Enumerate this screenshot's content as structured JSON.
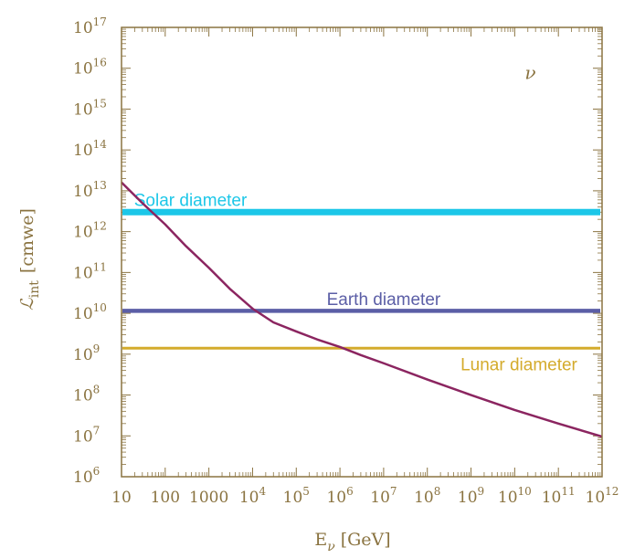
{
  "chart_data": {
    "type": "line",
    "xlabel": "E",
    "xlabel_sub": "ν",
    "xlabel_units": "[GeV]",
    "ylabel": "ℒ",
    "ylabel_sub": "int",
    "ylabel_units": "[cmwe]",
    "x_scale": "log",
    "y_scale": "log",
    "xlim": [
      10,
      1000000000000.0
    ],
    "ylim": [
      1000000.0,
      1e+17
    ],
    "x_ticks": [
      {
        "value": 10,
        "label": "10"
      },
      {
        "value": 100,
        "label": "100"
      },
      {
        "value": 1000,
        "label": "1000"
      },
      {
        "value": 10000.0,
        "base": "10",
        "exp": "4"
      },
      {
        "value": 100000.0,
        "base": "10",
        "exp": "5"
      },
      {
        "value": 1000000.0,
        "base": "10",
        "exp": "6"
      },
      {
        "value": 10000000.0,
        "base": "10",
        "exp": "7"
      },
      {
        "value": 100000000.0,
        "base": "10",
        "exp": "8"
      },
      {
        "value": 1000000000.0,
        "base": "10",
        "exp": "9"
      },
      {
        "value": 10000000000.0,
        "base": "10",
        "exp": "10"
      },
      {
        "value": 100000000000.0,
        "base": "10",
        "exp": "11"
      },
      {
        "value": 1000000000000.0,
        "base": "10",
        "exp": "12"
      }
    ],
    "y_ticks": [
      {
        "value": 1000000.0,
        "base": "10",
        "exp": "6"
      },
      {
        "value": 10000000.0,
        "base": "10",
        "exp": "7"
      },
      {
        "value": 100000000.0,
        "base": "10",
        "exp": "8"
      },
      {
        "value": 1000000000.0,
        "base": "10",
        "exp": "9"
      },
      {
        "value": 10000000000.0,
        "base": "10",
        "exp": "10"
      },
      {
        "value": 100000000000.0,
        "base": "10",
        "exp": "11"
      },
      {
        "value": 1000000000000.0,
        "base": "10",
        "exp": "12"
      },
      {
        "value": 10000000000000.0,
        "base": "10",
        "exp": "13"
      },
      {
        "value": 100000000000000.0,
        "base": "10",
        "exp": "14"
      },
      {
        "value": 1000000000000000.0,
        "base": "10",
        "exp": "15"
      },
      {
        "value": 1e+16,
        "base": "10",
        "exp": "16"
      },
      {
        "value": 1e+17,
        "base": "10",
        "exp": "17"
      }
    ],
    "curve": {
      "color": "#8b2560",
      "x": [
        10,
        30,
        100,
        300,
        1000,
        3000,
        10000.0,
        30000.0,
        100000.0,
        300000.0,
        1000000.0,
        3000000.0,
        10000000.0,
        100000000.0,
        1000000000.0,
        10000000000.0,
        100000000000.0,
        1000000000000.0
      ],
      "y": [
        16000000000000.0,
        5000000000000.0,
        1500000000000.0,
        440000000000.0,
        130000000000.0,
        40000000000.0,
        13000000000.0,
        6000000000.0,
        3600000000.0,
        2300000000.0,
        1500000000.0,
        950000000.0,
        600000000.0,
        240000000.0,
        100000000.0,
        43000000.0,
        20000000.0,
        9600000.0
      ]
    },
    "reference_lines": [
      {
        "label": "Solar diameter",
        "y": 3000000000000.0,
        "color": "#1cc7e8",
        "label_x": 380.0,
        "label_y": 5800000000000.0
      },
      {
        "label": "Earth diameter",
        "y": 11500000000.0,
        "color": "#5b5ea6",
        "label_x": 10000000.0,
        "label_y": 22000000000.0
      },
      {
        "label": "Lunar diameter",
        "y": 1400000000.0,
        "color": "#d4ab2c",
        "label_x": 12500000000.0,
        "label_y": 550000000.0
      }
    ],
    "annotation": {
      "text": "ν",
      "x": 17000000000.0,
      "y": 7500000000000000.0
    },
    "colors": {
      "axis": "#8a7340",
      "frame": "#8a7340"
    }
  }
}
